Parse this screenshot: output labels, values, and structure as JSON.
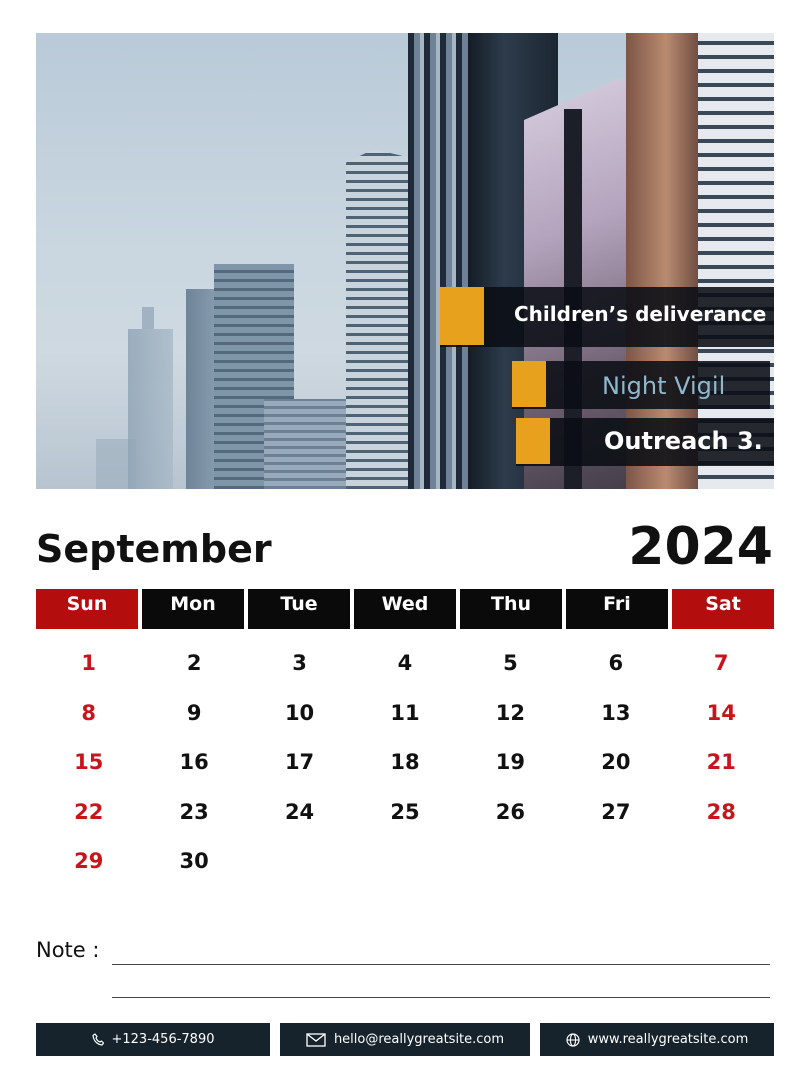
{
  "events": [
    {
      "label": "Children’s deliverance"
    },
    {
      "label": "Night Vigil"
    },
    {
      "label": "Outreach 3."
    }
  ],
  "header": {
    "month": "September",
    "year": "2024"
  },
  "weekdays": [
    "Sun",
    "Mon",
    "Tue",
    "Wed",
    "Thu",
    "Fri",
    "Sat"
  ],
  "weeks": [
    [
      "1",
      "2",
      "3",
      "4",
      "5",
      "6",
      "7"
    ],
    [
      "8",
      "9",
      "10",
      "11",
      "12",
      "13",
      "14"
    ],
    [
      "15",
      "16",
      "17",
      "18",
      "19",
      "20",
      "21"
    ],
    [
      "22",
      "23",
      "24",
      "25",
      "26",
      "27",
      "28"
    ],
    [
      "29",
      "30",
      "",
      "",
      "",
      "",
      ""
    ]
  ],
  "note": {
    "label": "Note :"
  },
  "contact": {
    "phone": "+123-456-7890",
    "email": "hello@reallygreatsite.com",
    "website": "www.reallygreatsite.com",
    "phone_icon": "phone-icon",
    "email_icon": "envelope-icon",
    "website_icon": "globe-icon"
  },
  "colors": {
    "weekend_red": "#c8141a",
    "accent_orange": "#e8a11c",
    "header_black": "#0a0a0a",
    "footer_bar": "#17232c"
  }
}
